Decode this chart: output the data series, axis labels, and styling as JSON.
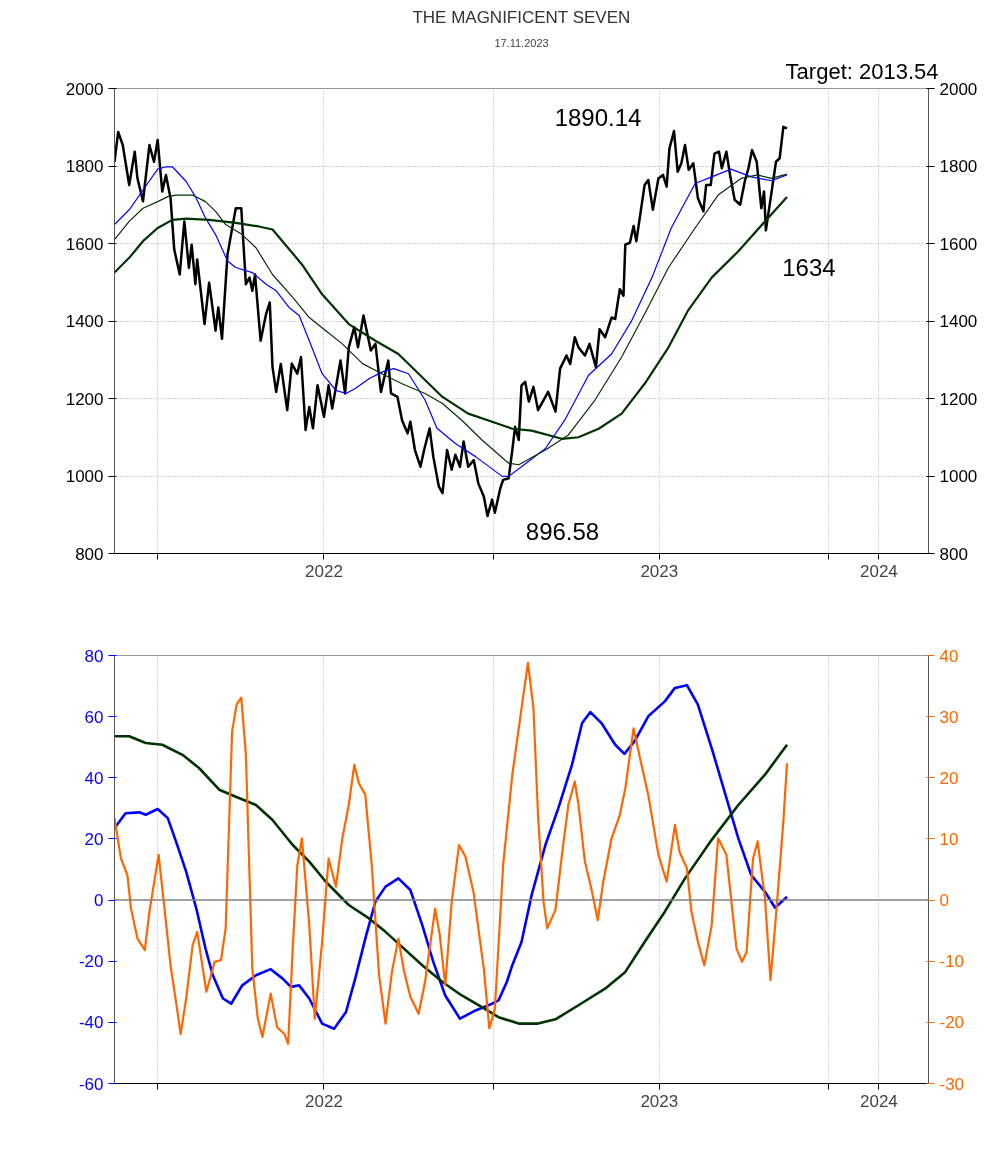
{
  "chart_data": [
    {
      "type": "line",
      "title": "THE MAGNIFICENT SEVEN",
      "subtitle": "17.11.2023",
      "xlim": [
        "2021-11-15",
        "2024-04-19"
      ],
      "xticks": [
        {
          "value": "2022-01-01",
          "label": null
        },
        {
          "value": "2022-07-01",
          "label": "2022"
        },
        {
          "value": "2023-01-01",
          "label": null
        },
        {
          "value": "2023-07-01",
          "label": "2023"
        },
        {
          "value": "2024-01-01",
          "label": null
        },
        {
          "value": "2024-02-25",
          "label": "2024"
        }
      ],
      "ylim": [
        800,
        2000
      ],
      "yticks": [
        800,
        1000,
        1200,
        1400,
        1600,
        1800,
        2000
      ],
      "y2lim": [
        800,
        2000
      ],
      "y2ticks": [
        800,
        1000,
        1200,
        1400,
        1600,
        1800,
        2000
      ],
      "grid": true,
      "annotations": [
        "Target: 2013.54",
        {
          "text": "1890.14",
          "x": "2023-07-17",
          "y": 1890.14
        },
        {
          "text": "896.58",
          "x": "2022-12-26",
          "y": 896.58
        },
        {
          "text": "1634",
          "x": "2023-10-25",
          "y": 1634
        }
      ],
      "series": [
        {
          "color": "#000000",
          "x": [
            "2021-11-15",
            "2021-11-19",
            "2021-11-24",
            "2021-12-01",
            "2021-12-07",
            "2021-12-10",
            "2021-12-16",
            "2021-12-23",
            "2021-12-28",
            "2022-01-01",
            "2022-01-06",
            "2022-01-10",
            "2022-01-15",
            "2022-01-19",
            "2022-01-25",
            "2022-01-30",
            "2022-02-04",
            "2022-02-07",
            "2022-02-11",
            "2022-02-13",
            "2022-02-21",
            "2022-02-26",
            "2022-03-05",
            "2022-03-08",
            "2022-03-12",
            "2022-03-18",
            "2022-03-27",
            "2022-04-02",
            "2022-04-07",
            "2022-04-11",
            "2022-04-14",
            "2022-04-17",
            "2022-04-23",
            "2022-04-29",
            "2022-05-03",
            "2022-05-06",
            "2022-05-10",
            "2022-05-15",
            "2022-05-22",
            "2022-05-27",
            "2022-06-02",
            "2022-06-06",
            "2022-06-11",
            "2022-06-15",
            "2022-06-19",
            "2022-06-24",
            "2022-07-01",
            "2022-07-06",
            "2022-07-10",
            "2022-07-19",
            "2022-07-24",
            "2022-07-28",
            "2022-08-03",
            "2022-08-07",
            "2022-08-13",
            "2022-08-21",
            "2022-08-26",
            "2022-09-01",
            "2022-09-09",
            "2022-09-12",
            "2022-09-19",
            "2022-09-24",
            "2022-09-30",
            "2022-10-03",
            "2022-10-08",
            "2022-10-14",
            "2022-10-18",
            "2022-10-24",
            "2022-10-28",
            "2022-11-03",
            "2022-11-07",
            "2022-11-12",
            "2022-11-17",
            "2022-11-21",
            "2022-11-26",
            "2022-11-30",
            "2022-12-05",
            "2022-12-11",
            "2022-12-16",
            "2022-12-22",
            "2022-12-26",
            "2022-12-31",
            "2023-01-03",
            "2023-01-09",
            "2023-01-12",
            "2023-01-18",
            "2023-01-22",
            "2023-01-25",
            "2023-01-29",
            "2023-02-01",
            "2023-02-05",
            "2023-02-09",
            "2023-02-14",
            "2023-02-19",
            "2023-02-25",
            "2023-03-02",
            "2023-03-10",
            "2023-03-15",
            "2023-03-22",
            "2023-03-26",
            "2023-03-31",
            "2023-04-04",
            "2023-04-11",
            "2023-04-16",
            "2023-04-23",
            "2023-04-27",
            "2023-05-03",
            "2023-05-10",
            "2023-05-14",
            "2023-05-19",
            "2023-05-23",
            "2023-05-25",
            "2023-05-30",
            "2023-06-03",
            "2023-06-06",
            "2023-06-15",
            "2023-06-19",
            "2023-06-24",
            "2023-06-30",
            "2023-07-05",
            "2023-07-09",
            "2023-07-12",
            "2023-07-17",
            "2023-07-21",
            "2023-07-25",
            "2023-07-29",
            "2023-08-02",
            "2023-08-07",
            "2023-08-12",
            "2023-08-18",
            "2023-08-21",
            "2023-08-26",
            "2023-08-30",
            "2023-09-04",
            "2023-09-07",
            "2023-09-12",
            "2023-09-16",
            "2023-09-21",
            "2023-09-27",
            "2023-10-02",
            "2023-10-06",
            "2023-10-10",
            "2023-10-15",
            "2023-10-20",
            "2023-10-23",
            "2023-10-25",
            "2023-10-31",
            "2023-11-05",
            "2023-11-09",
            "2023-11-13",
            "2023-11-17"
          ],
          "values": [
            1811,
            1888,
            1854,
            1751,
            1837,
            1768,
            1709,
            1854,
            1811,
            1867,
            1734,
            1777,
            1717,
            1585,
            1520,
            1657,
            1537,
            1597,
            1495,
            1559,
            1392,
            1499,
            1375,
            1435,
            1354,
            1572,
            1691,
            1691,
            1495,
            1512,
            1478,
            1520,
            1349,
            1418,
            1448,
            1281,
            1217,
            1289,
            1170,
            1290,
            1264,
            1307,
            1119,
            1178,
            1123,
            1234,
            1153,
            1234,
            1174,
            1298,
            1213,
            1332,
            1384,
            1332,
            1414,
            1324,
            1341,
            1217,
            1298,
            1213,
            1204,
            1144,
            1110,
            1140,
            1067,
            1024,
            1067,
            1123,
            1050,
            973,
            956,
            1067,
            1016,
            1055,
            1024,
            1089,
            1024,
            1041,
            981,
            947,
            896.58,
            939,
            905,
            969,
            990,
            994,
            1067,
            1127,
            1093,
            1234,
            1243,
            1192,
            1230,
            1170,
            1196,
            1217,
            1166,
            1277,
            1311,
            1289,
            1358,
            1332,
            1311,
            1341,
            1281,
            1379,
            1358,
            1409,
            1405,
            1482,
            1465,
            1597,
            1602,
            1645,
            1606,
            1751,
            1764,
            1687,
            1768,
            1777,
            1747,
            1845,
            1890.14,
            1785,
            1807,
            1854,
            1790,
            1807,
            1717,
            1683,
            1751,
            1751,
            1832,
            1837,
            1794,
            1837,
            1777,
            1713,
            1700,
            1760,
            1794,
            1841,
            1811,
            1691,
            1734,
            1634,
            1730,
            1811,
            1820,
            1901,
            1897
          ]
        },
        {
          "color": "#0000ff",
          "x": [
            "2021-11-15",
            "2021-12-01",
            "2021-12-16",
            "2022-01-01",
            "2022-01-10",
            "2022-01-17",
            "2022-02-01",
            "2022-02-12",
            "2022-02-22",
            "2022-03-05",
            "2022-03-18",
            "2022-03-27",
            "2022-04-14",
            "2022-04-29",
            "2022-05-10",
            "2022-05-24",
            "2022-06-04",
            "2022-06-15",
            "2022-06-29",
            "2022-07-14",
            "2022-07-25",
            "2022-08-04",
            "2022-08-19",
            "2022-09-02",
            "2022-09-15",
            "2022-10-01",
            "2022-10-19",
            "2022-11-01",
            "2022-11-21",
            "2022-12-13",
            "2023-01-11",
            "2023-01-18",
            "2023-02-01",
            "2023-02-27",
            "2023-03-20",
            "2023-04-15",
            "2023-05-10",
            "2023-06-01",
            "2023-06-23",
            "2023-07-14",
            "2023-08-09",
            "2023-08-27",
            "2023-09-17",
            "2023-10-09",
            "2023-10-31",
            "2023-11-17"
          ],
          "values": [
            1649,
            1687,
            1738,
            1792,
            1798,
            1798,
            1760,
            1717,
            1666,
            1623,
            1555,
            1538,
            1525,
            1495,
            1478,
            1435,
            1414,
            1349,
            1264,
            1221,
            1213,
            1226,
            1251,
            1268,
            1277,
            1264,
            1196,
            1123,
            1084,
            1050,
            999,
            999,
            1024,
            1071,
            1144,
            1260,
            1315,
            1401,
            1512,
            1640,
            1755,
            1772,
            1792,
            1772,
            1762,
            1777
          ]
        },
        {
          "color": "#003300",
          "x": [
            "2021-11-15",
            "2021-12-01",
            "2021-12-16",
            "2022-01-01",
            "2022-01-12",
            "2022-01-21",
            "2022-02-08",
            "2022-02-22",
            "2022-03-05",
            "2022-03-16",
            "2022-04-03",
            "2022-04-18",
            "2022-05-06",
            "2022-05-28",
            "2022-06-15",
            "2022-07-03",
            "2022-07-21",
            "2022-08-12",
            "2022-09-02",
            "2022-09-24",
            "2022-10-19",
            "2022-11-07",
            "2022-11-28",
            "2022-12-20",
            "2023-01-18",
            "2023-01-29",
            "2023-02-27",
            "2023-03-24",
            "2023-04-22",
            "2023-05-21",
            "2023-06-15",
            "2023-07-11",
            "2023-08-09",
            "2023-09-03",
            "2023-09-28",
            "2023-10-16",
            "2023-10-31",
            "2023-11-17"
          ],
          "values": [
            1610,
            1657,
            1691,
            1708,
            1721,
            1725,
            1725,
            1708,
            1683,
            1649,
            1623,
            1589,
            1520,
            1461,
            1409,
            1375,
            1341,
            1290,
            1264,
            1238,
            1213,
            1187,
            1144,
            1093,
            1033,
            1029,
            1067,
            1106,
            1196,
            1307,
            1418,
            1538,
            1640,
            1725,
            1768,
            1777,
            1768,
            1779
          ]
        },
        {
          "color": "#003300",
          "x": [
            "2021-11-15",
            "2021-12-01",
            "2021-12-16",
            "2022-01-01",
            "2022-01-17",
            "2022-02-01",
            "2022-02-26",
            "2022-03-27",
            "2022-04-21",
            "2022-05-06",
            "2022-05-20",
            "2022-06-07",
            "2022-06-29",
            "2022-07-28",
            "2022-08-26",
            "2022-09-20",
            "2022-10-12",
            "2022-11-07",
            "2022-12-05",
            "2022-12-31",
            "2023-01-22",
            "2023-02-12",
            "2023-03-17",
            "2023-04-04",
            "2023-04-26",
            "2023-05-21",
            "2023-06-15",
            "2023-07-11",
            "2023-08-01",
            "2023-08-27",
            "2023-09-25",
            "2023-10-24",
            "2023-11-17"
          ],
          "values": [
            1525,
            1563,
            1606,
            1640,
            1661,
            1664,
            1661,
            1653,
            1644,
            1636,
            1597,
            1546,
            1469,
            1392,
            1349,
            1315,
            1264,
            1204,
            1161,
            1140,
            1122,
            1117,
            1096,
            1100,
            1122,
            1161,
            1238,
            1332,
            1426,
            1512,
            1580,
            1657,
            1720
          ]
        }
      ]
    },
    {
      "type": "line",
      "xlim": [
        "2021-11-15",
        "2024-04-19"
      ],
      "xticks": [
        {
          "value": "2022-01-01",
          "label": null
        },
        {
          "value": "2022-07-01",
          "label": "2022"
        },
        {
          "value": "2023-01-01",
          "label": null
        },
        {
          "value": "2023-07-01",
          "label": "2023"
        },
        {
          "value": "2024-01-01",
          "label": null
        },
        {
          "value": "2024-02-25",
          "label": "2024"
        }
      ],
      "ylim": [
        -60,
        80
      ],
      "yticks": [
        -60,
        -40,
        -20,
        0,
        20,
        40,
        60,
        80
      ],
      "y2lim": [
        -30,
        40
      ],
      "y2ticks": [
        -30,
        -20,
        -10,
        0,
        10,
        20,
        30,
        40
      ],
      "grid": "x",
      "ref_lines": [
        {
          "axis": "y",
          "value": 0,
          "color": "#808080"
        }
      ],
      "series": [
        {
          "color": "#0000ff",
          "x": [
            "2021-11-15",
            "2021-11-27",
            "2021-12-12",
            "2021-12-19",
            "2022-01-01",
            "2022-01-12",
            "2022-01-21",
            "2022-02-01",
            "2022-02-12",
            "2022-02-22",
            "2022-03-02",
            "2022-03-13",
            "2022-03-22",
            "2022-04-03",
            "2022-04-18",
            "2022-05-04",
            "2022-05-17",
            "2022-05-26",
            "2022-06-04",
            "2022-06-15",
            "2022-06-29",
            "2022-07-12",
            "2022-07-25",
            "2022-08-04",
            "2022-08-15",
            "2022-08-26",
            "2022-09-06",
            "2022-09-20",
            "2022-10-03",
            "2022-10-16",
            "2022-10-28",
            "2022-11-10",
            "2022-11-26",
            "2022-12-13",
            "2022-12-31",
            "2023-01-07",
            "2023-01-16",
            "2023-01-22",
            "2023-02-01",
            "2023-02-12",
            "2023-02-27",
            "2023-03-13",
            "2023-03-28",
            "2023-04-08",
            "2023-04-17",
            "2023-04-29",
            "2023-05-14",
            "2023-05-24",
            "2023-06-04",
            "2023-06-19",
            "2023-07-07",
            "2023-07-18",
            "2023-07-31",
            "2023-08-12",
            "2023-08-27",
            "2023-09-10",
            "2023-09-25",
            "2023-10-09",
            "2023-10-24",
            "2023-11-04",
            "2023-11-17"
          ],
          "values": [
            23.5,
            28.4,
            28.7,
            27.9,
            29.8,
            26.8,
            19.1,
            9.3,
            -2.7,
            -15.8,
            -24.6,
            -32.2,
            -33.9,
            -27.9,
            -24.6,
            -22.6,
            -25.7,
            -28.4,
            -27.9,
            -32.2,
            -40.4,
            -42.1,
            -36.6,
            -25.7,
            -12.6,
            -0.5,
            4.4,
            7.1,
            3.3,
            -8.2,
            -20.2,
            -31.2,
            -38.8,
            -36.1,
            -33.9,
            -32.8,
            -26.8,
            -21.3,
            -13.7,
            1.6,
            18,
            30,
            44.3,
            57.9,
            61.5,
            57.9,
            50.8,
            47.8,
            51.9,
            60.1,
            65,
            69.4,
            70.3,
            63.9,
            49.7,
            35.5,
            20.2,
            8.2,
            2.7,
            -2.5,
            1.1
          ]
        },
        {
          "color": "#003300",
          "x": [
            "2021-11-15",
            "2021-12-01",
            "2021-12-19",
            "2022-01-06",
            "2022-01-28",
            "2022-02-15",
            "2022-03-09",
            "2022-03-31",
            "2022-04-18",
            "2022-05-06",
            "2022-05-28",
            "2022-06-15",
            "2022-07-03",
            "2022-07-28",
            "2022-08-19",
            "2022-09-06",
            "2022-09-24",
            "2022-10-16",
            "2022-11-07",
            "2022-11-28",
            "2022-12-20",
            "2023-01-07",
            "2023-01-29",
            "2023-02-19",
            "2023-03-10",
            "2023-04-04",
            "2023-05-03",
            "2023-05-25",
            "2023-06-15",
            "2023-07-07",
            "2023-07-29",
            "2023-08-27",
            "2023-09-25",
            "2023-10-24",
            "2023-11-17"
          ],
          "values": [
            53.6,
            53.6,
            51.4,
            50.8,
            47.5,
            43.2,
            36.1,
            33.3,
            31.1,
            26.2,
            18,
            12.6,
            6,
            -1.6,
            -6,
            -10.4,
            -15.3,
            -21.3,
            -26.8,
            -31.2,
            -35,
            -38.3,
            -40.4,
            -40.4,
            -39,
            -34.4,
            -29,
            -23.5,
            -13.7,
            -3.8,
            7.1,
            19.7,
            31.1,
            41,
            50.8
          ]
        },
        {
          "color": "#ff6600",
          "axis": "y2",
          "x": [
            "2021-11-15",
            "2021-11-22",
            "2021-11-29",
            "2021-12-03",
            "2021-12-10",
            "2021-12-18",
            "2021-12-23",
            "2022-01-02",
            "2022-01-08",
            "2022-01-15",
            "2022-01-21",
            "2022-01-26",
            "2022-02-01",
            "2022-02-08",
            "2022-02-13",
            "2022-02-23",
            "2022-03-04",
            "2022-03-11",
            "2022-03-16",
            "2022-03-23",
            "2022-03-28",
            "2022-04-02",
            "2022-04-07",
            "2022-04-14",
            "2022-04-20",
            "2022-04-25",
            "2022-05-04",
            "2022-05-11",
            "2022-05-19",
            "2022-05-23",
            "2022-05-28",
            "2022-06-02",
            "2022-06-07",
            "2022-06-15",
            "2022-06-21",
            "2022-06-29",
            "2022-07-06",
            "2022-07-14",
            "2022-07-21",
            "2022-07-28",
            "2022-08-03",
            "2022-08-08",
            "2022-08-15",
            "2022-08-22",
            "2022-08-30",
            "2022-09-06",
            "2022-09-13",
            "2022-09-20",
            "2022-09-26",
            "2022-10-03",
            "2022-10-12",
            "2022-10-19",
            "2022-10-30",
            "2022-11-04",
            "2022-11-10",
            "2022-11-17",
            "2022-11-25",
            "2022-12-02",
            "2022-12-11",
            "2022-12-16",
            "2022-12-22",
            "2022-12-28",
            "2023-01-03",
            "2023-01-12",
            "2023-01-22",
            "2023-01-29",
            "2023-02-08",
            "2023-02-14",
            "2023-02-19",
            "2023-02-25",
            "2023-03-01",
            "2023-03-10",
            "2023-03-17",
            "2023-03-24",
            "2023-03-31",
            "2023-04-04",
            "2023-04-11",
            "2023-04-18",
            "2023-04-25",
            "2023-05-01",
            "2023-05-10",
            "2023-05-19",
            "2023-05-25",
            "2023-06-03",
            "2023-06-10",
            "2023-06-19",
            "2023-06-30",
            "2023-07-09",
            "2023-07-18",
            "2023-07-23",
            "2023-07-31",
            "2023-08-05",
            "2023-08-12",
            "2023-08-19",
            "2023-08-27",
            "2023-09-03",
            "2023-09-12",
            "2023-09-23",
            "2023-09-29",
            "2023-10-04",
            "2023-10-11",
            "2023-10-16",
            "2023-10-24",
            "2023-10-30",
            "2023-11-05",
            "2023-11-13",
            "2023-11-17"
          ],
          "values": [
            13.4,
            6.8,
            4.1,
            -1.4,
            -6.3,
            -8.2,
            -1.9,
            7.4,
            -0.8,
            -10.7,
            -16.7,
            -21.9,
            -16.1,
            -7.4,
            -5.2,
            -15,
            -10.1,
            -9.8,
            -4.6,
            27.6,
            32,
            33.1,
            23.8,
            -11.2,
            -19.4,
            -22.4,
            -15.3,
            -20.8,
            -21.9,
            -23.5,
            -7.9,
            5.7,
            10.1,
            -4.1,
            -19.4,
            -6.8,
            6.8,
            2.2,
            10.1,
            15.6,
            22.1,
            19.1,
            17.2,
            5.7,
            -12.3,
            -20.2,
            -11.7,
            -6.3,
            -11.5,
            -15.8,
            -18.6,
            -13.4,
            -1.4,
            -5.7,
            -13.9,
            -0.3,
            9,
            7.1,
            1.1,
            -4.6,
            -11.2,
            -21,
            -17.8,
            5.7,
            20.5,
            28.1,
            38.8,
            31.4,
            13.9,
            -0.3,
            -4.6,
            -1.6,
            7.4,
            15.6,
            19.4,
            15.6,
            6.3,
            1.9,
            -3.3,
            3,
            10.1,
            13.9,
            18.3,
            28.1,
            23.2,
            17.2,
            7.4,
            3,
            12.3,
            7.9,
            5.2,
            -1.9,
            -6.8,
            -10.7,
            -4.1,
            10.1,
            7.4,
            -7.9,
            -10.1,
            -8.5,
            6.8,
            9.6,
            0.3,
            -13.1,
            -2.5,
            12.8,
            22.4
          ]
        }
      ]
    }
  ]
}
